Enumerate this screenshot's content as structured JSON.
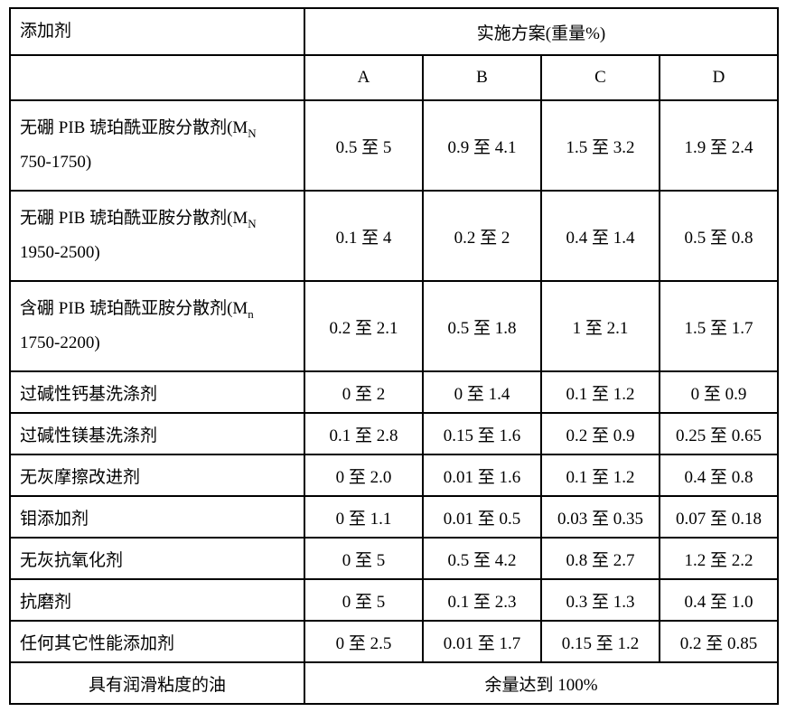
{
  "header": {
    "additive": "添加剂",
    "schemes": "实施方案(重量%)"
  },
  "columns": [
    "A",
    "B",
    "C",
    "D"
  ],
  "rows": [
    {
      "label_line1": "无硼 PIB 琥珀酰亚胺分散剂(M",
      "label_sub": "N",
      "label_line2": "750-1750)",
      "tall": true,
      "A": "0.5 至 5",
      "B": "0.9 至 4.1",
      "C": "1.5 至 3.2",
      "D": "1.9 至 2.4"
    },
    {
      "label_line1": "无硼 PIB 琥珀酰亚胺分散剂(M",
      "label_sub": "N",
      "label_line2": "1950-2500)",
      "tall": true,
      "A": "0.1 至 4",
      "B": "0.2 至 2",
      "C": "0.4 至 1.4",
      "D": "0.5 至 0.8"
    },
    {
      "label_line1": "含硼 PIB 琥珀酰亚胺分散剂(M",
      "label_sub": "n",
      "label_line2": "1750-2200)",
      "tall": true,
      "A": "0.2 至 2.1",
      "B": "0.5 至 1.8",
      "C": "1 至 2.1",
      "D": "1.5 至 1.7"
    },
    {
      "label_line1": "过碱性钙基洗涤剂",
      "tall": false,
      "A": "0 至 2",
      "B": "0 至 1.4",
      "C": "0.1 至 1.2",
      "D": "0 至 0.9"
    },
    {
      "label_line1": "过碱性镁基洗涤剂",
      "tall": false,
      "A": "0.1 至 2.8",
      "B": "0.15 至 1.6",
      "C": "0.2 至 0.9",
      "D": "0.25 至 0.65"
    },
    {
      "label_line1": "无灰摩擦改进剂",
      "tall": false,
      "A": "0 至 2.0",
      "B": "0.01 至 1.6",
      "C": "0.1 至 1.2",
      "D": "0.4 至 0.8"
    },
    {
      "label_line1": "钼添加剂",
      "tall": false,
      "A": "0 至 1.1",
      "B": "0.01 至 0.5",
      "C": "0.03 至 0.35",
      "D": "0.07 至 0.18"
    },
    {
      "label_line1": "无灰抗氧化剂",
      "tall": false,
      "A": "0 至 5",
      "B": "0.5 至 4.2",
      "C": "0.8 至 2.7",
      "D": "1.2 至 2.2"
    },
    {
      "label_line1": "抗磨剂",
      "tall": false,
      "A": "0 至 5",
      "B": "0.1 至 2.3",
      "C": "0.3 至 1.3",
      "D": "0.4 至 1.0"
    },
    {
      "label_line1": "任何其它性能添加剂",
      "tall": false,
      "A": "0 至 2.5",
      "B": "0.01 至 1.7",
      "C": "0.15 至 1.2",
      "D": "0.2 至 0.85"
    }
  ],
  "footer": {
    "label": "具有润滑粘度的油",
    "value": "余量达到 100%"
  }
}
